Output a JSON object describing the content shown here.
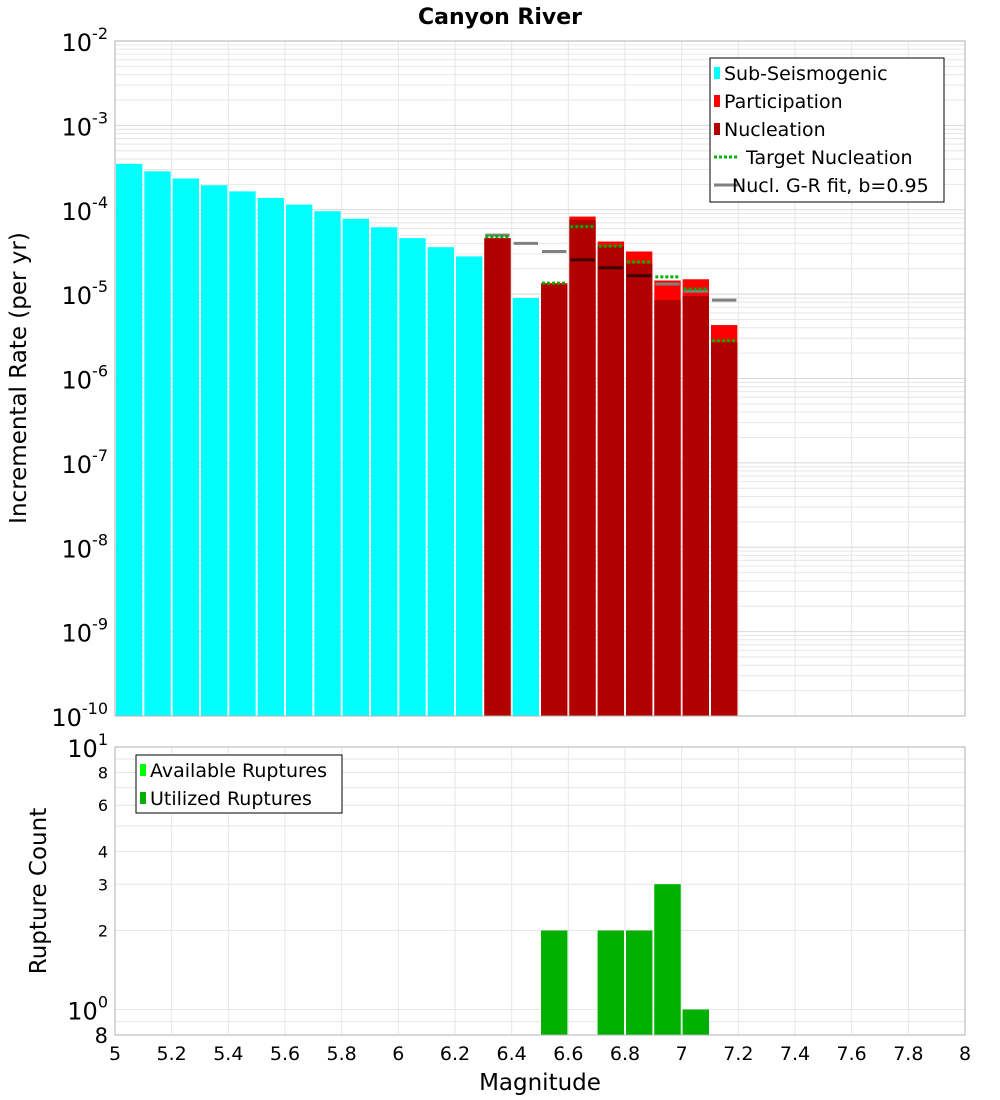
{
  "colors": {
    "sub_seismogenic": "#00FFFF",
    "participation": "#FF0000",
    "nucleation": "#B00000",
    "target_nucleation": "#00B000",
    "gr_fit": "#808080",
    "available_ruptures": "#00FF00",
    "utilized_ruptures": "#00B000",
    "grid": "#e6e6e6",
    "frame": "#b0b0b0"
  },
  "chart_data": [
    {
      "type": "bar",
      "title": "Canyon River",
      "xlabel": "",
      "ylabel": "Incremental Rate (per yr)",
      "yscale": "log",
      "xlim": [
        5,
        8
      ],
      "ylim": [
        1e-10,
        0.01
      ],
      "y_tick_labels": [
        {
          "base": "10",
          "exp": "-10",
          "value": 1e-10
        },
        {
          "base": "10",
          "exp": "-9",
          "value": 1e-09
        },
        {
          "base": "10",
          "exp": "-8",
          "value": 1e-08
        },
        {
          "base": "10",
          "exp": "-7",
          "value": 1e-07
        },
        {
          "base": "10",
          "exp": "-6",
          "value": 1e-06
        },
        {
          "base": "10",
          "exp": "-5",
          "value": 1e-05
        },
        {
          "base": "10",
          "exp": "-4",
          "value": 0.0001
        },
        {
          "base": "10",
          "exp": "-3",
          "value": 0.001
        },
        {
          "base": "10",
          "exp": "-2",
          "value": 0.01
        }
      ],
      "bin_width": 0.1,
      "legend": {
        "position": "top-right",
        "entries": [
          {
            "label": "Sub-Seismogenic",
            "style": "bar",
            "color_key": "sub_seismogenic"
          },
          {
            "label": "Participation",
            "style": "bar",
            "color_key": "participation"
          },
          {
            "label": "Nucleation",
            "style": "bar",
            "color_key": "nucleation"
          },
          {
            "label": "Target Nucleation",
            "style": "dotted",
            "color_key": "target_nucleation"
          },
          {
            "label": "Nucl. G-R fit, b=0.95",
            "style": "line",
            "color_key": "gr_fit"
          }
        ]
      },
      "series": [
        {
          "name": "Sub-Seismogenic",
          "x": [
            5.05,
            5.15,
            5.25,
            5.35,
            5.45,
            5.55,
            5.65,
            5.75,
            5.85,
            5.95,
            6.05,
            6.15,
            6.25,
            6.45
          ],
          "values": [
            0.00035,
            0.000285,
            0.000235,
            0.000195,
            0.000165,
            0.000138,
            0.000115,
            9.6e-05,
            7.8e-05,
            6.2e-05,
            4.6e-05,
            3.6e-05,
            2.8e-05,
            9e-06
          ]
        },
        {
          "name": "Participation",
          "x": [
            6.35,
            6.55,
            6.65,
            6.75,
            6.85,
            6.95,
            7.05,
            7.15
          ],
          "values": [
            4.6e-05,
            1.35e-05,
            8.3e-05,
            4.2e-05,
            3.2e-05,
            1.45e-05,
            1.5e-05,
            4.3e-06
          ]
        },
        {
          "name": "Nucleation",
          "x": [
            6.35,
            6.55,
            6.65,
            6.75,
            6.85,
            6.95,
            7.05,
            7.15
          ],
          "values": [
            4.6e-05,
            1.3e-05,
            7.6e-05,
            3.7e-05,
            2.3e-05,
            8.5e-06,
            9.5e-06,
            2.7e-06
          ]
        },
        {
          "name": "Target Nucleation",
          "x": [
            6.35,
            6.55,
            6.65,
            6.75,
            6.85,
            6.95,
            7.05,
            7.15
          ],
          "values": [
            4.8e-05,
            1.35e-05,
            6.3e-05,
            3.7e-05,
            2.4e-05,
            1.6e-05,
            1.15e-05,
            2.8e-06
          ]
        },
        {
          "name": "Nucl. G-R fit, b=0.95",
          "x": [
            6.35,
            6.45,
            6.55,
            6.65,
            6.75,
            6.85,
            6.95,
            7.05,
            7.15
          ],
          "values": [
            5e-05,
            4e-05,
            3.2e-05,
            2.55e-05,
            2.05e-05,
            1.65e-05,
            1.32e-05,
            1.08e-05,
            8.5e-06
          ]
        }
      ]
    },
    {
      "type": "bar",
      "title": "",
      "xlabel": "Magnitude",
      "ylabel": "Rupture Count",
      "yscale": "log",
      "xlim": [
        5,
        8
      ],
      "ylim": [
        0.8,
        10
      ],
      "x_tick_labels": [
        "5",
        "5.2",
        "5.4",
        "5.6",
        "5.8",
        "6",
        "6.2",
        "6.4",
        "6.6",
        "6.8",
        "7",
        "7.2",
        "7.4",
        "7.6",
        "7.8",
        "8"
      ],
      "y_major_tick_labels": [
        {
          "base": "10",
          "exp": "0",
          "value": 1
        },
        {
          "base": "10",
          "exp": "1",
          "value": 10
        }
      ],
      "y_minor_tick_labels": [
        {
          "label": "8",
          "value": 0.8
        },
        {
          "label": "2",
          "value": 2
        },
        {
          "label": "3",
          "value": 3
        },
        {
          "label": "4",
          "value": 4
        },
        {
          "label": "6",
          "value": 6
        },
        {
          "label": "8",
          "value": 8
        }
      ],
      "bin_width": 0.1,
      "legend": {
        "position": "top-left",
        "entries": [
          {
            "label": "Available Ruptures",
            "style": "bar",
            "color_key": "available_ruptures"
          },
          {
            "label": "Utilized Ruptures",
            "style": "bar",
            "color_key": "utilized_ruptures"
          }
        ]
      },
      "series": [
        {
          "name": "Available Ruptures",
          "x": [
            6.55,
            6.75,
            6.85,
            6.95,
            7.05
          ],
          "values": [
            2,
            2,
            2,
            3,
            1
          ]
        },
        {
          "name": "Utilized Ruptures",
          "x": [
            6.55,
            6.75,
            6.85,
            6.95,
            7.05
          ],
          "values": [
            2,
            2,
            2,
            3,
            1
          ]
        }
      ]
    }
  ]
}
